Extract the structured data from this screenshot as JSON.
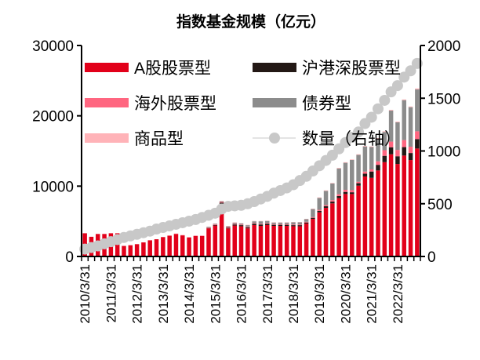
{
  "chart_data": {
    "type": "bar",
    "subtype": "stacked bar + line (secondary axis)",
    "title": "指数基金规模（亿元）",
    "xlabel": "",
    "ylabel": "",
    "ylim": [
      0,
      30000
    ],
    "y2lim": [
      0,
      2000
    ],
    "yticks": [
      0,
      10000,
      20000,
      30000
    ],
    "y2ticks": [
      0,
      500,
      1000,
      1500,
      2000
    ],
    "grid": false,
    "legend_position": "top-left, two columns inside plot",
    "categories": [
      "2010Q1",
      "2010Q2",
      "2010Q3",
      "2010Q4",
      "2011Q1",
      "2011Q2",
      "2011Q3",
      "2011Q4",
      "2012Q1",
      "2012Q2",
      "2012Q3",
      "2012Q4",
      "2013Q1",
      "2013Q2",
      "2013Q3",
      "2013Q4",
      "2014Q1",
      "2014Q2",
      "2014Q3",
      "2014Q4",
      "2015Q1",
      "2015Q2",
      "2015Q3",
      "2015Q4",
      "2016Q1",
      "2016Q2",
      "2016Q3",
      "2016Q4",
      "2017Q1",
      "2017Q2",
      "2017Q3",
      "2017Q4",
      "2018Q1",
      "2018Q2",
      "2018Q3",
      "2018Q4",
      "2019Q1",
      "2019Q2",
      "2019Q3",
      "2019Q4",
      "2020Q1",
      "2020Q2",
      "2020Q3",
      "2020Q4",
      "2021Q1",
      "2021Q2",
      "2021Q3",
      "2021Q4",
      "2022Q1",
      "2022Q2",
      "2022Q3",
      "2022Q4"
    ],
    "tick_labels": [
      "2010/3/31",
      "2011/3/31",
      "2012/3/31",
      "2013/3/31",
      "2014/3/31",
      "2015/3/31",
      "2016/3/31",
      "2017/3/31",
      "2018/3/31",
      "2019/3/31",
      "2020/3/31",
      "2021/3/31",
      "2022/3/31"
    ],
    "series": [
      {
        "name": "A股股票型",
        "color": "#E2001A",
        "axis": "left",
        "values": [
          3300,
          2800,
          3200,
          3200,
          3300,
          3300,
          1500,
          1600,
          1750,
          2000,
          2300,
          2450,
          2750,
          2950,
          3200,
          3000,
          2700,
          2900,
          2900,
          4000,
          4400,
          7500,
          4000,
          4400,
          4300,
          4000,
          4460,
          4350,
          4460,
          4350,
          4350,
          4350,
          4300,
          4300,
          4680,
          5350,
          6280,
          6910,
          7550,
          8290,
          8880,
          8880,
          10070,
          11370,
          11180,
          12230,
          13410,
          14530,
          13150,
          14350,
          13710,
          15350
        ]
      },
      {
        "name": "沪港深股票型",
        "color": "#231815",
        "axis": "left",
        "values": [
          0,
          0,
          0,
          0,
          0,
          0,
          0,
          0,
          0,
          0,
          0,
          0,
          0,
          0,
          0,
          0,
          0,
          0,
          0,
          50,
          80,
          150,
          100,
          150,
          150,
          150,
          200,
          200,
          200,
          150,
          150,
          150,
          150,
          150,
          150,
          150,
          200,
          250,
          250,
          300,
          300,
          250,
          350,
          400,
          900,
          800,
          900,
          1000,
          1100,
          1200,
          1000,
          1340
        ]
      },
      {
        "name": "海外股票型",
        "color": "#FF6680",
        "axis": "left",
        "values": [
          0,
          0,
          0,
          0,
          0,
          0,
          0,
          0,
          0,
          0,
          0,
          0,
          30,
          30,
          40,
          40,
          40,
          50,
          50,
          60,
          80,
          100,
          100,
          100,
          100,
          100,
          100,
          100,
          100,
          100,
          100,
          100,
          100,
          100,
          100,
          100,
          150,
          150,
          200,
          250,
          300,
          300,
          200,
          300,
          300,
          500,
          800,
          800,
          900,
          1000,
          900,
          1110
        ]
      },
      {
        "name": "债券型",
        "color": "#8C8C8C",
        "axis": "left",
        "values": [
          0,
          0,
          0,
          0,
          0,
          0,
          0,
          0,
          0,
          0,
          0,
          0,
          0,
          0,
          0,
          0,
          0,
          0,
          0,
          100,
          100,
          100,
          100,
          150,
          150,
          200,
          240,
          350,
          290,
          220,
          220,
          220,
          300,
          300,
          370,
          1140,
          1700,
          2020,
          2380,
          3680,
          3840,
          4290,
          3830,
          3570,
          3180,
          3220,
          2600,
          4410,
          3920,
          5680,
          5620,
          5950
        ]
      },
      {
        "name": "商品型",
        "color": "#FFB3B8",
        "axis": "left",
        "values": [
          0,
          0,
          0,
          0,
          0,
          0,
          0,
          0,
          0,
          0,
          0,
          0,
          0,
          0,
          30,
          30,
          30,
          30,
          30,
          40,
          40,
          50,
          50,
          50,
          50,
          50,
          50,
          50,
          50,
          50,
          50,
          50,
          50,
          50,
          50,
          60,
          70,
          70,
          70,
          80,
          80,
          80,
          80,
          80,
          80,
          80,
          90,
          100,
          100,
          100,
          100,
          140
        ]
      },
      {
        "name": "数量（右轴）",
        "color": "#C8C8C8",
        "axis": "right",
        "type": "line",
        "values": [
          70,
          85,
          100,
          120,
          140,
          160,
          180,
          195,
          210,
          225,
          240,
          260,
          275,
          290,
          305,
          320,
          335,
          350,
          370,
          390,
          410,
          450,
          475,
          480,
          485,
          500,
          520,
          545,
          570,
          600,
          625,
          650,
          680,
          720,
          760,
          810,
          860,
          910,
          960,
          1020,
          1080,
          1130,
          1180,
          1260,
          1320,
          1400,
          1480,
          1560,
          1620,
          1700,
          1760,
          1830
        ]
      }
    ]
  }
}
